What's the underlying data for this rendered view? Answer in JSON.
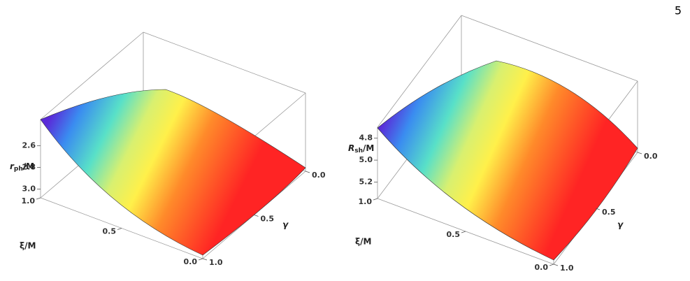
{
  "page_number": "5",
  "chart_data": [
    {
      "type": "surface3d",
      "xlabel": "ξ/M",
      "ylabel": "γ",
      "zlabel": [
        "r",
        "ph",
        "/M"
      ],
      "xlim": [
        0,
        1
      ],
      "ylim": [
        0,
        1
      ],
      "zlim": [
        2.36,
        3.08
      ],
      "zreversed": true,
      "xticks": [
        {
          "value": 0,
          "label": "0.0"
        },
        0.5,
        {
          "value": 1,
          "label": "1.0"
        }
      ],
      "yticks": [
        {
          "value": 0,
          "label": "0.0"
        },
        0.5,
        {
          "value": 1,
          "label": "1.0"
        }
      ],
      "zticks": [
        2.6,
        2.8,
        {
          "value": 3,
          "label": "3.0"
        }
      ]
    },
    {
      "type": "surface3d",
      "xlabel": "ξ/M",
      "ylabel": "γ",
      "zlabel": [
        "R",
        "sh",
        "/M"
      ],
      "xlim": [
        0,
        1
      ],
      "ylim": [
        0,
        1
      ],
      "zlim": [
        4.7,
        5.35
      ],
      "zreversed": true,
      "xticks": [
        {
          "value": 0,
          "label": "0.0"
        },
        0.5,
        {
          "value": 1,
          "label": "1.0"
        }
      ],
      "yticks": [
        {
          "value": 0,
          "label": "0.0"
        },
        0.5,
        {
          "value": 1,
          "label": "1.0"
        }
      ],
      "zticks": [
        4.8,
        {
          "value": 5,
          "label": "5.0"
        },
        5.2
      ]
    }
  ]
}
